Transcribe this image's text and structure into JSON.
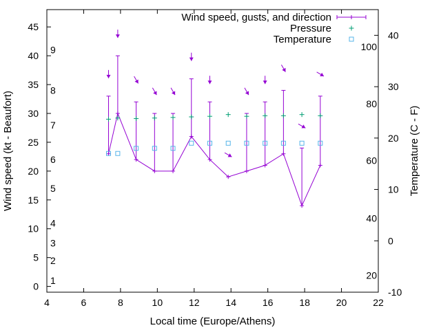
{
  "chart_data": {
    "type": "line",
    "xlabel": "Local time (Europe/Athens)",
    "ylabel": "Wind speed (kt - Beaufort)",
    "y2label": "Temperature (C - F)",
    "xlim": [
      4,
      22
    ],
    "ylim": [
      -1,
      48
    ],
    "y2lim": [
      -10,
      45
    ],
    "grid": false,
    "legend_position": "top-right",
    "x_ticks": [
      "4",
      "6",
      "8",
      "10",
      "12",
      "14",
      "16",
      "18",
      "20",
      "22"
    ],
    "y_ticks": [
      "0",
      "5",
      "10",
      "15",
      "20",
      "25",
      "30",
      "35",
      "40",
      "45"
    ],
    "y2_ticks": [
      "-10",
      "0",
      "10",
      "20",
      "30",
      "40"
    ],
    "beaufort_scale": [
      {
        "label": "1",
        "y": 1
      },
      {
        "label": "2",
        "y": 4.5
      },
      {
        "label": "3",
        "y": 7.5
      },
      {
        "label": "4",
        "y": 11
      },
      {
        "label": "5",
        "y": 17
      },
      {
        "label": "6",
        "y": 22
      },
      {
        "label": "7",
        "y": 28
      },
      {
        "label": "8",
        "y": 34
      },
      {
        "label": "9",
        "y": 41
      }
    ],
    "fahrenheit_scale": [
      {
        "label": "20",
        "y": -6.7
      },
      {
        "label": "40",
        "y": 4.4
      },
      {
        "label": "60",
        "y": 15.6
      },
      {
        "label": "80",
        "y": 26.7
      },
      {
        "label": "100",
        "y": 37.8
      }
    ],
    "series": [
      {
        "name": "Wind speed, gusts, and direction",
        "color": "#9400d3",
        "x": [
          7.35,
          7.85,
          8.85,
          9.85,
          10.85,
          11.85,
          12.85,
          13.85,
          14.85,
          15.85,
          16.85,
          17.85,
          18.85
        ],
        "wind": [
          23,
          30,
          22,
          20,
          20,
          26,
          22,
          19,
          20,
          21,
          23,
          14,
          21
        ],
        "gust": [
          33,
          40,
          32,
          30,
          30,
          36,
          32,
          null,
          30,
          32,
          34,
          24,
          33
        ],
        "direction_deg": [
          0,
          0,
          330,
          330,
          330,
          0,
          0,
          300,
          330,
          0,
          330,
          300,
          300
        ]
      },
      {
        "name": "Pressure",
        "color": "#009e73",
        "x": [
          7.35,
          7.85,
          8.85,
          9.85,
          10.85,
          11.85,
          12.85,
          13.85,
          14.85,
          15.85,
          16.85,
          17.85,
          18.85
        ],
        "y": [
          29,
          29.2,
          29.1,
          29.2,
          29.3,
          29.4,
          29.5,
          29.8,
          29.5,
          29.6,
          29.6,
          29.8,
          29.6
        ]
      },
      {
        "name": "Temperature",
        "color": "#56b4e9",
        "x": [
          7.35,
          7.85,
          8.85,
          9.85,
          10.85,
          11.85,
          12.85,
          13.85,
          14.85,
          15.85,
          16.85,
          17.85,
          18.85
        ],
        "y": [
          17,
          17,
          18,
          18,
          18,
          19,
          19,
          19,
          19,
          19,
          19,
          19,
          19
        ]
      }
    ]
  }
}
